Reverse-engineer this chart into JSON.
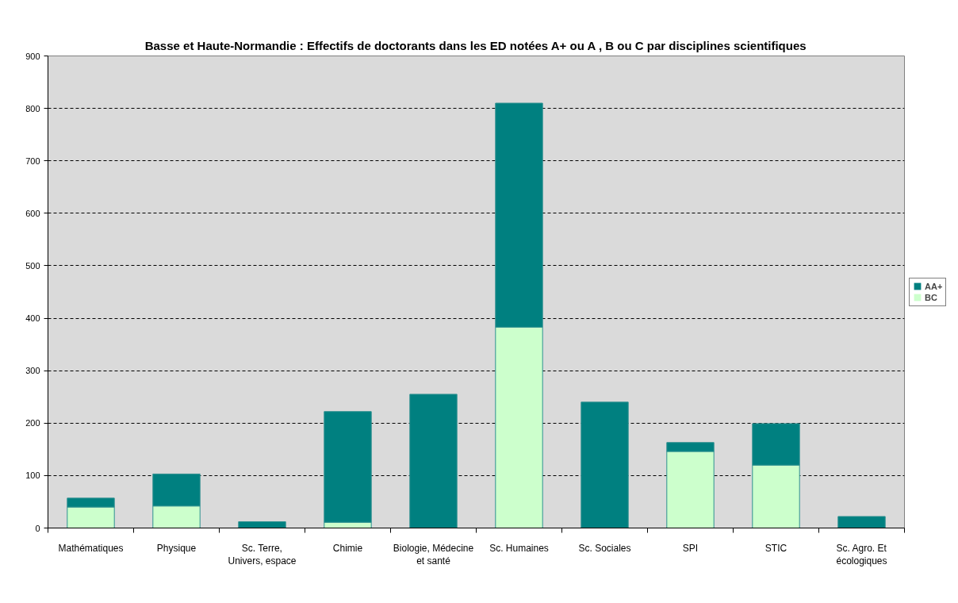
{
  "chart_data": {
    "type": "bar",
    "title": "Basse et Haute-Normandie : Effectifs de doctorants dans les ED notées A+ ou A , B ou C par disciplines scientifiques",
    "categories": [
      "Mathématiques",
      "Physique",
      "Sc. Terre, Univers, espace",
      "Chimie",
      "Biologie, Médecine et santé",
      "Sc. Humaines",
      "Sc. Sociales",
      "SPI",
      "STIC",
      "Sc. Agro. Et écologiques"
    ],
    "series": [
      {
        "name": "BC",
        "color": "#ccffcc",
        "values": [
          40,
          42,
          0,
          11,
          0,
          383,
          0,
          146,
          120,
          0
        ]
      },
      {
        "name": "AA+",
        "color": "#008080",
        "values": [
          17,
          61,
          12,
          211,
          255,
          427,
          240,
          17,
          79,
          22
        ]
      }
    ],
    "stacked": true,
    "ylim": [
      0,
      900
    ],
    "yticks": [
      0,
      100,
      200,
      300,
      400,
      500,
      600,
      700,
      800,
      900
    ],
    "grid": "y",
    "legend": "right"
  }
}
